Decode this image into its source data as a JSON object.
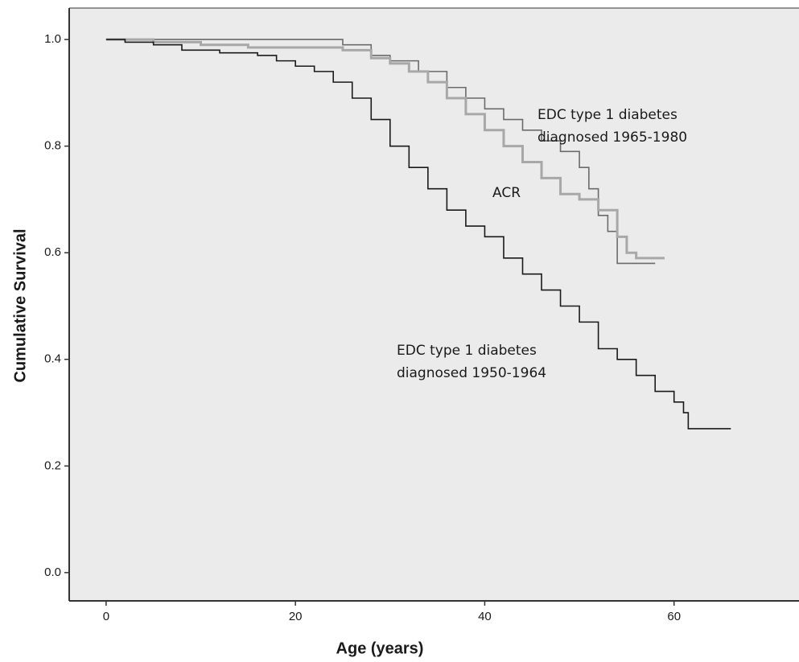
{
  "chart_data": {
    "type": "line",
    "step": true,
    "x_label": "Age (years)",
    "y_label": "Cumulative Survival",
    "xlim": [
      -3.9,
      73.2
    ],
    "ylim": [
      -0.053,
      1.059
    ],
    "xticks": [
      0,
      20,
      40,
      60
    ],
    "yticks": [
      {
        "value": 0,
        "label": "0.0"
      },
      {
        "value": 0.2,
        "label": "0.2"
      },
      {
        "value": 0.4,
        "label": "0.4"
      },
      {
        "value": 0.6,
        "label": "0.6"
      },
      {
        "value": 0.8,
        "label": "0.8"
      },
      {
        "value": 1,
        "label": "1.0"
      }
    ],
    "background": "#ebebeb",
    "series": [
      {
        "label": [
          "EDC type 1 diabetes",
          "diagnosed 1965-1980"
        ],
        "color": "#6b6b6b",
        "x": [
          0,
          15,
          22,
          25,
          28,
          30,
          33,
          36,
          38,
          40,
          42,
          44,
          46,
          48,
          50,
          51,
          52,
          53,
          54,
          58
        ],
        "values": [
          1,
          1,
          1,
          0.99,
          0.97,
          0.96,
          0.94,
          0.91,
          0.89,
          0.87,
          0.85,
          0.83,
          0.81,
          0.79,
          0.76,
          0.72,
          0.67,
          0.64,
          0.58,
          0.58
        ]
      },
      {
        "label": [
          "ACR"
        ],
        "color": "#a8a8a8",
        "x": [
          0,
          5,
          10,
          15,
          20,
          25,
          28,
          30,
          32,
          34,
          36,
          38,
          40,
          42,
          44,
          46,
          48,
          50,
          52,
          54,
          55,
          56,
          59
        ],
        "values": [
          1,
          0.995,
          0.99,
          0.985,
          0.985,
          0.98,
          0.965,
          0.955,
          0.94,
          0.92,
          0.89,
          0.86,
          0.83,
          0.8,
          0.77,
          0.74,
          0.71,
          0.7,
          0.68,
          0.63,
          0.6,
          0.59,
          0.59
        ]
      },
      {
        "label": [
          "EDC type 1 diabetes",
          "diagnosed 1950-1964"
        ],
        "color": "#1a1a1a",
        "x": [
          0,
          2,
          5,
          8,
          12,
          16,
          18,
          20,
          22,
          24,
          26,
          28,
          30,
          32,
          34,
          36,
          38,
          40,
          42,
          44,
          46,
          48,
          50,
          52,
          54,
          56,
          58,
          60,
          61,
          61.5,
          66
        ],
        "values": [
          1,
          0.995,
          0.99,
          0.98,
          0.975,
          0.97,
          0.96,
          0.95,
          0.94,
          0.92,
          0.89,
          0.85,
          0.8,
          0.76,
          0.72,
          0.68,
          0.65,
          0.63,
          0.59,
          0.56,
          0.53,
          0.5,
          0.47,
          0.42,
          0.4,
          0.37,
          0.34,
          0.32,
          0.3,
          0.27,
          0.27
        ]
      }
    ]
  }
}
